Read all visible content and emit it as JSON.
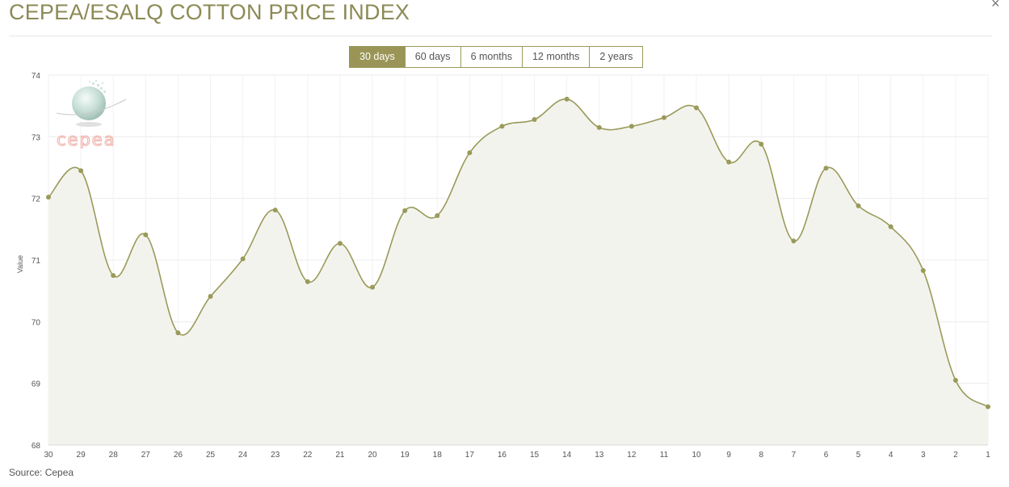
{
  "header": {
    "title": "CEPEA/ESALQ COTTON PRICE INDEX",
    "close_label": "×"
  },
  "tabs": [
    {
      "label": "30 days",
      "active": true
    },
    {
      "label": "60 days",
      "active": false
    },
    {
      "label": "6 months",
      "active": false
    },
    {
      "label": "12 months",
      "active": false
    },
    {
      "label": "2 years",
      "active": false
    }
  ],
  "logo": {
    "text": "cepea"
  },
  "footer": {
    "source": "Source: Cepea"
  },
  "colors": {
    "accent": "#9a9556",
    "line": "#9a9a5a",
    "area": "#f3f3ee",
    "title": "#8c8a55"
  },
  "chart_data": {
    "type": "area",
    "title": "",
    "xlabel": "",
    "ylabel": "Value",
    "ylim": [
      68,
      74
    ],
    "yticks": [
      68,
      69,
      70,
      71,
      72,
      73,
      74
    ],
    "grid": true,
    "categories": [
      "30",
      "29",
      "28",
      "27",
      "26",
      "25",
      "24",
      "23",
      "22",
      "21",
      "20",
      "19",
      "18",
      "17",
      "16",
      "15",
      "14",
      "13",
      "12",
      "11",
      "10",
      "9",
      "8",
      "7",
      "6",
      "5",
      "4",
      "3",
      "2",
      "1"
    ],
    "series": [
      {
        "values": [
          72.02,
          72.45,
          70.75,
          71.41,
          69.82,
          70.41,
          71.02,
          71.81,
          70.65,
          71.27,
          70.56,
          71.8,
          71.72,
          72.74,
          73.17,
          73.28,
          73.61,
          73.15,
          73.17,
          73.31,
          73.47,
          72.59,
          72.88,
          71.31,
          72.49,
          71.88,
          71.54,
          70.83,
          69.05,
          68.62
        ]
      }
    ]
  }
}
